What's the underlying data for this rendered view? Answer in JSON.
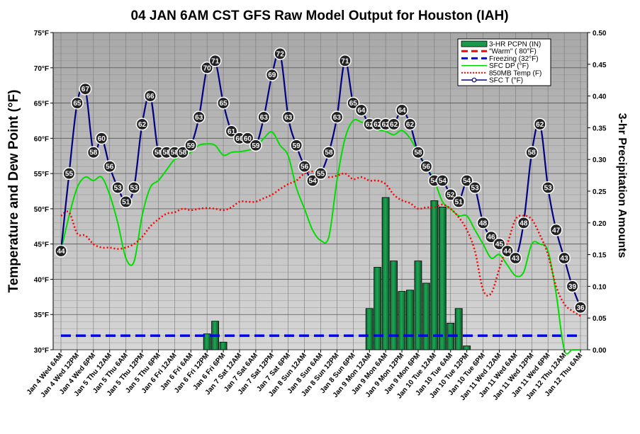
{
  "chart_data": {
    "type": "line",
    "title": "04 JAN 6AM CST GFS Raw Model Output for Houston (IAH)",
    "ylabel_left": "Temperature and Dew Point (°F)",
    "ylabel_right": "3-hr Precipitation Amounts",
    "ylim_left": [
      30,
      75
    ],
    "ylim_right": [
      0,
      0.5
    ],
    "yticks_left": [
      "30°F",
      "35°F",
      "40°F",
      "45°F",
      "50°F",
      "55°F",
      "60°F",
      "65°F",
      "70°F",
      "75°F"
    ],
    "yticks_right": [
      "0.00",
      "0.05",
      "0.10",
      "0.15",
      "0.20",
      "0.25",
      "0.30",
      "0.35",
      "0.40",
      "0.45",
      "0.50"
    ],
    "x_labels": [
      "Jan 4 Wed 6AM",
      "Jan 4 Wed 12PM",
      "Jan 4 Wed 6PM",
      "Jan 5 Thu 12AM",
      "Jan 5 Thu 6AM",
      "Jan 5 Thu 12PM",
      "Jan 5 Thu 6PM",
      "Jan 6 Fri 12AM",
      "Jan 6 Fri 6AM",
      "Jan 6 Fri 12PM",
      "Jan 6 Fri 6PM",
      "Jan 7 Sat 12AM",
      "Jan 7 Sat 6AM",
      "Jan 7 Sat 12PM",
      "Jan 7 Sat 6PM",
      "Jan 8 Sun 12AM",
      "Jan 8 Sun 6AM",
      "Jan 8 Sun 12PM",
      "Jan 8 Sun 6PM",
      "Jan 9 Mon 12AM",
      "Jan 9 Mon 6AM",
      "Jan 9 Mon 12PM",
      "Jan 9 Mon 6PM",
      "Jan 10 Tue 12AM",
      "Jan 10 Tue 6AM",
      "Jan 10 Tue 12PM",
      "Jan 10 Tue 6PM",
      "Jan 11 Wed 12AM",
      "Jan 11 Wed 6AM",
      "Jan 11 Wed 12PM",
      "Jan 11 Wed 6PM",
      "Jan 12 Thu 12AM",
      "Jan 12 Thu 6AM"
    ],
    "legend": [
      {
        "name": "3-HR PCPN (IN)",
        "color": "#1a9a4a",
        "kind": "bar"
      },
      {
        "name": "\"Warm\" ( 80°F)",
        "color": "#ff0000",
        "kind": "dash"
      },
      {
        "name": "Freezing (32°F)",
        "color": "#0000ff",
        "kind": "dash"
      },
      {
        "name": "SFC DP (°F)",
        "color": "#00cc00",
        "kind": "line"
      },
      {
        "name": "850MB Temp (F)",
        "color": "#ff0000",
        "kind": "dot"
      },
      {
        "name": "SFC T (°F)",
        "color": "#000080",
        "kind": "marker"
      }
    ],
    "reference_lines": {
      "freezing_f": 32,
      "warm_f": 80
    },
    "series": [
      {
        "name": "SFC T (°F)",
        "values": [
          44,
          55,
          65,
          67,
          58,
          60,
          56,
          53,
          51,
          53,
          62,
          66,
          58,
          58,
          58,
          58,
          59,
          63,
          70,
          71,
          65,
          61,
          60,
          60,
          59,
          63,
          69,
          72,
          63,
          59,
          56,
          54,
          55,
          58,
          63,
          71,
          65,
          64,
          62,
          62,
          62,
          62,
          64,
          62,
          58,
          56,
          54,
          54,
          52,
          51,
          54,
          53,
          48,
          46,
          45,
          44,
          43,
          48,
          58,
          62,
          53,
          47,
          43,
          39,
          36
        ]
      },
      {
        "name": "SFC DP (°F)",
        "values": [
          44,
          49,
          53,
          54.5,
          54,
          54.5,
          52,
          48,
          43,
          42.5,
          49,
          53,
          54,
          55.5,
          57,
          57.5,
          58,
          59,
          59.2,
          59,
          57.6,
          58,
          58.1,
          58.3,
          58.7,
          60,
          60.9,
          59,
          57.5,
          53,
          50,
          47,
          45.5,
          46,
          54,
          60,
          62.5,
          62.3,
          61.8,
          61.2,
          61,
          60.5,
          61.1,
          60,
          58,
          56,
          54,
          51,
          50,
          49,
          49,
          47,
          45,
          43,
          43.5,
          42,
          40.5,
          41,
          45,
          45,
          44,
          38,
          30,
          30,
          30
        ]
      },
      {
        "name": "850MB Temp (F)",
        "values": [
          49,
          49.5,
          46.5,
          46.2,
          45,
          44.5,
          44.5,
          44.3,
          44.5,
          45,
          46,
          47.5,
          48.5,
          49.3,
          49.5,
          50,
          49.8,
          50,
          50.1,
          50,
          49.8,
          50.2,
          51,
          51,
          51,
          51.5,
          52,
          52.8,
          53.5,
          54,
          55,
          55.3,
          55,
          54.5,
          54.7,
          55,
          54.2,
          54.5,
          54,
          54,
          53.5,
          52,
          51.2,
          50.8,
          50,
          50.2,
          50.2,
          50.6,
          50,
          48.8,
          47,
          44,
          38.5,
          38,
          41.5,
          45,
          48.5,
          49,
          48.5,
          46.3,
          43.5,
          39,
          36.5,
          35.5,
          34.8
        ]
      },
      {
        "name": "3-HR PCPN (IN)",
        "values": [
          0,
          0,
          0,
          0,
          0,
          0,
          0,
          0,
          0,
          0,
          0,
          0,
          0,
          0,
          0,
          0,
          0,
          0,
          0.025,
          0.045,
          0.012,
          0,
          0,
          0,
          0,
          0,
          0,
          0,
          0,
          0,
          0,
          0,
          0,
          0,
          0,
          0,
          0,
          0,
          0.065,
          0.13,
          0.24,
          0.14,
          0.092,
          0.094,
          0.14,
          0.105,
          0.235,
          0.225,
          0.042,
          0.065,
          0.006,
          0,
          0,
          0,
          0,
          0,
          0,
          0,
          0,
          0,
          0,
          0,
          0,
          0,
          0
        ]
      }
    ]
  }
}
